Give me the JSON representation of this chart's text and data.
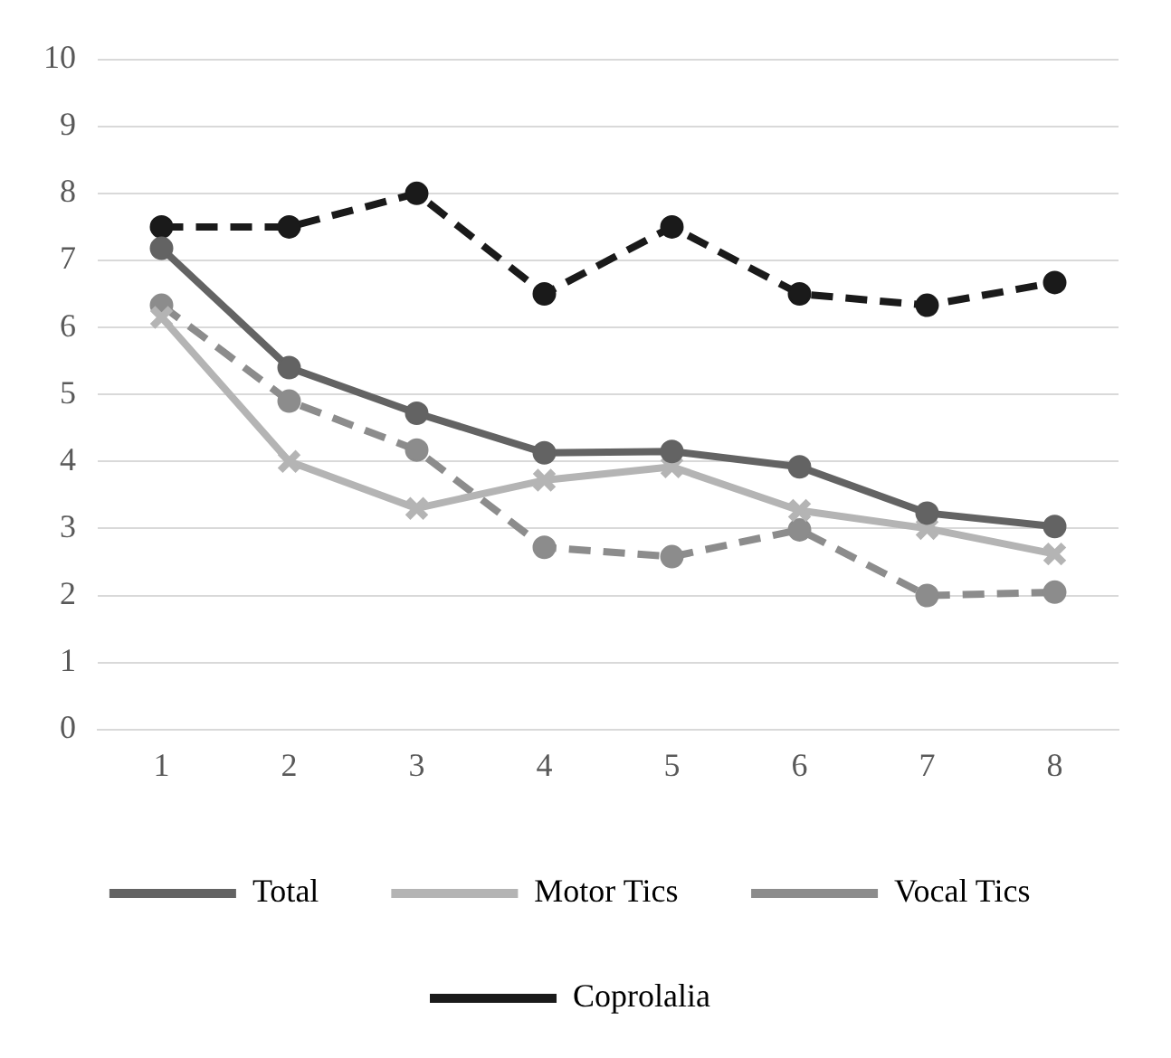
{
  "chart_data": {
    "type": "line",
    "categories": [
      "1",
      "2",
      "3",
      "4",
      "5",
      "6",
      "7",
      "8"
    ],
    "ylim": [
      0,
      10
    ],
    "yticks": [
      0,
      1,
      2,
      3,
      4,
      5,
      6,
      7,
      8,
      9,
      10
    ],
    "grid": "y",
    "legend": "bottom",
    "series": [
      {
        "name": "Total",
        "color": "#636363",
        "marker": "circle",
        "line_style": "solid",
        "values": [
          7.18,
          5.4,
          4.72,
          4.13,
          4.15,
          3.92,
          3.23,
          3.03
        ]
      },
      {
        "name": "Motor Tics",
        "color": "#b4b4b4",
        "marker": "cross",
        "line_style": "solid",
        "values": [
          6.15,
          4.0,
          3.3,
          3.72,
          3.92,
          3.27,
          3.0,
          2.62
        ]
      },
      {
        "name": "Vocal Tics",
        "color": "#8c8c8c",
        "marker": "circle",
        "line_style": "dashed",
        "values": [
          6.33,
          4.9,
          4.17,
          2.72,
          2.58,
          2.98,
          2.0,
          2.05
        ]
      },
      {
        "name": "Coprolalia",
        "color": "#1a1a1a",
        "marker": "circle",
        "line_style": "dashed",
        "values": [
          7.5,
          7.5,
          8.0,
          6.5,
          7.5,
          6.5,
          6.33,
          6.67
        ]
      }
    ]
  }
}
